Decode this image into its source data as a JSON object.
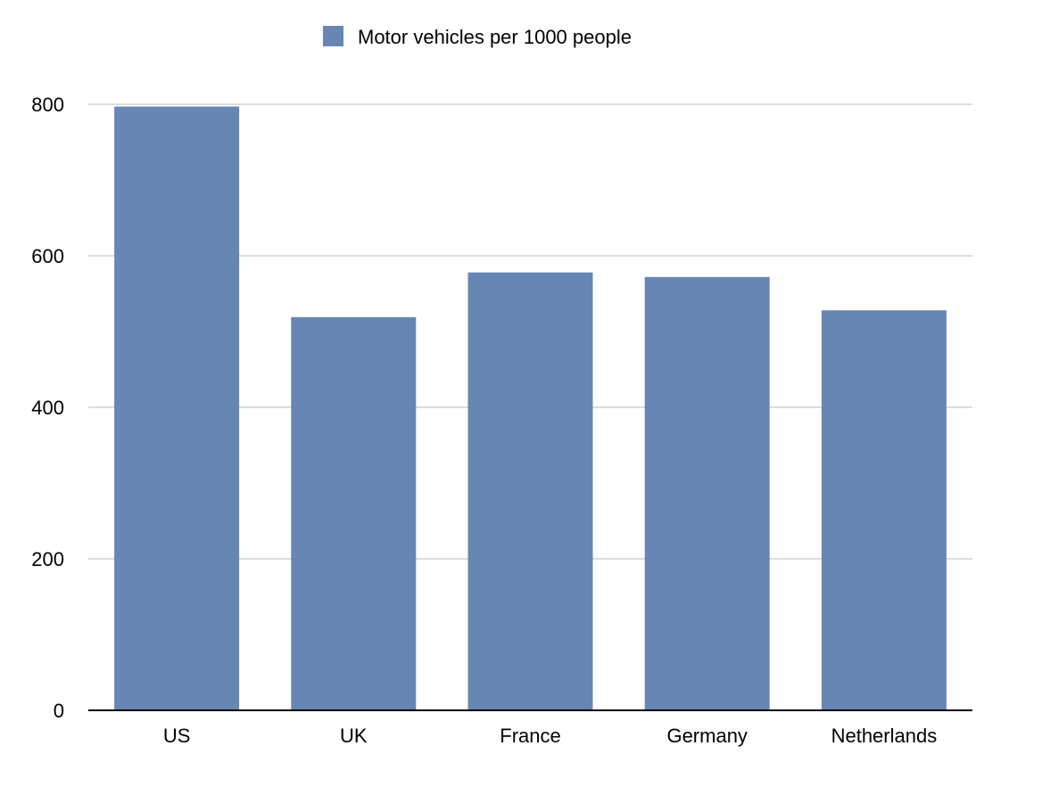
{
  "chart_data": {
    "type": "bar",
    "title": "",
    "xlabel": "",
    "ylabel": "",
    "categories": [
      "US",
      "UK",
      "France",
      "Germany",
      "Netherlands"
    ],
    "series": [
      {
        "name": "Motor vehicles per 1000 people",
        "color": "#6786b4",
        "values": [
          797,
          519,
          578,
          572,
          528
        ]
      }
    ],
    "ylim": [
      0,
      800
    ],
    "yticks": [
      0,
      200,
      400,
      600,
      800
    ],
    "grid": true,
    "legend_position": "top-center"
  }
}
